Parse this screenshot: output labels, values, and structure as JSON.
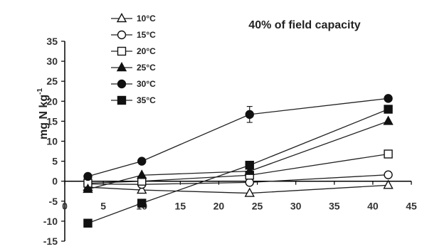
{
  "chart_data": {
    "type": "line",
    "title": "40% of field capacity",
    "ylabel_main": "mg N kg",
    "ylabel_sup": "-1",
    "xlabel": "",
    "xlim": [
      0,
      45
    ],
    "ylim": [
      -15,
      35
    ],
    "x_ticks": [
      0,
      5,
      10,
      15,
      20,
      25,
      30,
      35,
      40,
      45
    ],
    "y_ticks": [
      -15,
      -10,
      -5,
      0,
      5,
      10,
      15,
      20,
      25,
      30,
      35
    ],
    "legend_position": "top-left",
    "x": [
      3,
      10,
      24,
      42
    ],
    "series": [
      {
        "name": "10°C",
        "marker": "triangle-open",
        "values": [
          -1.5,
          -2.2,
          -3.0,
          -1.0
        ]
      },
      {
        "name": "15°C",
        "marker": "circle-open",
        "values": [
          -0.7,
          -0.8,
          -0.3,
          1.6
        ]
      },
      {
        "name": "20°C",
        "marker": "square-open",
        "values": [
          -0.5,
          0.0,
          1.5,
          6.8
        ]
      },
      {
        "name": "25°C",
        "marker": "triangle-filled",
        "values": [
          -2.0,
          1.5,
          2.5,
          15.0
        ]
      },
      {
        "name": "30°C",
        "marker": "circle-filled",
        "values": [
          1.2,
          5.0,
          16.7,
          20.7
        ]
      },
      {
        "name": "35°C",
        "marker": "square-filled",
        "values": [
          -10.5,
          -5.5,
          4.0,
          18.0
        ]
      }
    ],
    "error_bars": {
      "series": "30°C",
      "x": 24,
      "value": 16.7,
      "err": 2.0
    },
    "grid": false
  }
}
